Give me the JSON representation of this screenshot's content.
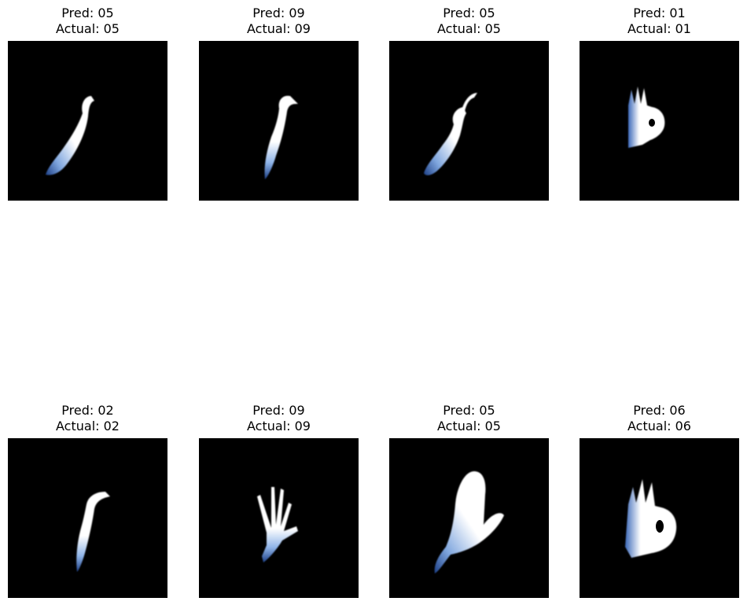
{
  "grid": {
    "rows": 2,
    "columns": 4
  },
  "colors": {
    "background": "#ffffff",
    "image_background": "#000000",
    "hand_highlight": "#ffffff",
    "hand_fade": "#2a5aa8"
  },
  "panels": [
    {
      "pred_label": "Pred: 05",
      "actual_label": "Actual: 05",
      "gesture": "curved-finger"
    },
    {
      "pred_label": "Pred: 09",
      "actual_label": "Actual: 09",
      "gesture": "curved-finger"
    },
    {
      "pred_label": "Pred: 05",
      "actual_label": "Actual: 05",
      "gesture": "curved-finger"
    },
    {
      "pred_label": "Pred: 01",
      "actual_label": "Actual: 01",
      "gesture": "ok-sign"
    },
    {
      "pred_label": "Pred: 02",
      "actual_label": "Actual: 02",
      "gesture": "curved-finger"
    },
    {
      "pred_label": "Pred: 09",
      "actual_label": "Actual: 09",
      "gesture": "open-palm"
    },
    {
      "pred_label": "Pred: 05",
      "actual_label": "Actual: 05",
      "gesture": "flat-hand"
    },
    {
      "pred_label": "Pred: 06",
      "actual_label": "Actual: 06",
      "gesture": "ok-sign"
    }
  ]
}
